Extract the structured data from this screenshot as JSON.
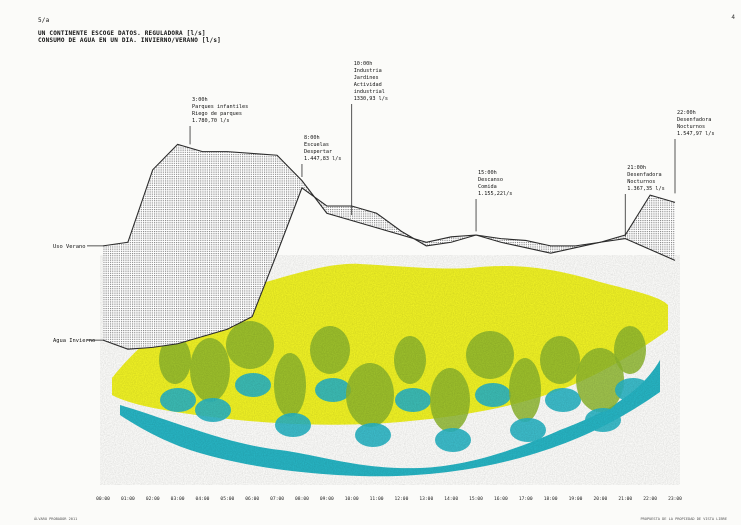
{
  "header": {
    "tag": "5/a",
    "title_line1": "UN CONTINENTE ESCOGE DATOS. REGULADORA [l/s]",
    "title_line2": "CONSUMO DE AGUA EN UN DIA. INVIERNO/VERANO [l/s]"
  },
  "page_mark": "4",
  "footer": {
    "left": "ÁLVARO PROBADOR 2011",
    "right": "PROPUESTA DE LA PROPIEDAD DE VISTA LIBRE"
  },
  "chart_data": {
    "type": "area",
    "x": [
      "00:00",
      "01:00",
      "02:00",
      "03:00",
      "04:00",
      "05:00",
      "06:00",
      "07:00",
      "08:00",
      "09:00",
      "10:00",
      "11:00",
      "12:00",
      "13:00",
      "14:00",
      "15:00",
      "16:00",
      "17:00",
      "18:00",
      "19:00",
      "20:00",
      "21:00",
      "22:00",
      "23:00"
    ],
    "series": [
      {
        "name": "Uso Verano",
        "values": [
          1140,
          1160,
          1560,
          1700,
          1660,
          1660,
          1650,
          1640,
          1500,
          1320,
          1280,
          1240,
          1200,
          1160,
          1190,
          1200,
          1160,
          1130,
          1100,
          1130,
          1160,
          1200,
          1420,
          1380
        ]
      },
      {
        "name": "Agua Invierno",
        "values": [
          620,
          570,
          580,
          600,
          640,
          680,
          750,
          1100,
          1460,
          1360,
          1360,
          1320,
          1220,
          1140,
          1160,
          1200,
          1180,
          1170,
          1140,
          1140,
          1160,
          1180,
          1120,
          1060
        ]
      }
    ],
    "annotations": [
      {
        "x": 3.5,
        "anchor": 1700,
        "lines": [
          "3:00h",
          "Parques infantiles",
          "Riego de parques",
          "1.780,70 l/s"
        ]
      },
      {
        "x": 8.0,
        "anchor": 1520,
        "lines": [
          "8:00h",
          "Escuelas",
          "Despertar",
          "1.447,83 l/s"
        ]
      },
      {
        "x": 10.0,
        "anchor": 1310,
        "lines": [
          "10:00h",
          "Industria",
          "Jardines",
          "Actividad",
          "industrial",
          "1330,93 l/s"
        ]
      },
      {
        "x": 15.0,
        "anchor": 1220,
        "lines": [
          "15:00h",
          "Descanso",
          "Comida",
          "1.155,22l/s"
        ]
      },
      {
        "x": 21.0,
        "anchor": 1190,
        "lines": [
          "21:00h",
          "Desenfadora",
          "Nocturnos",
          "1.367,35 l/s"
        ]
      },
      {
        "x": 23.0,
        "anchor": 1430,
        "lines": [
          "22:00h",
          "Desenfadora",
          "Nocturnos",
          "1.547,97 l/s"
        ]
      }
    ],
    "ylim": [
      400,
      2000
    ],
    "xlabel": "",
    "ylabel": "",
    "grid": false,
    "colors": {
      "line": "#2b2b2b",
      "fill_hatch": "#8e8e8e",
      "yellow": "#eef024",
      "green": "#8cb52d",
      "teal": "#27b3c2",
      "paper": "#fbfbf9"
    }
  }
}
